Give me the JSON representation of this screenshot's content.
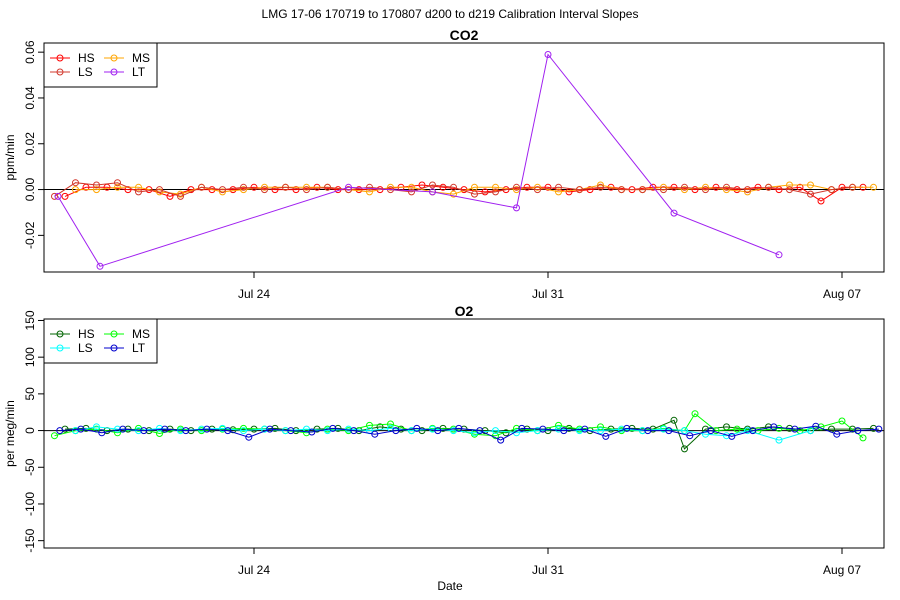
{
  "figure": {
    "suptitle": "LMG   17-06    170719 to 170807    d200 to d219   Calibration Interval Slopes",
    "xlabel": "Date"
  },
  "chart_data": [
    {
      "type": "scatter",
      "title": "CO2",
      "ylabel": "ppm/min",
      "x_range": [
        "2017-07-19",
        "2017-08-08"
      ],
      "ylim": [
        -0.036,
        0.064
      ],
      "y_ticks": [
        -0.02,
        0.0,
        0.02,
        0.04,
        0.06
      ],
      "y_tick_labels": [
        "-0.02",
        "0.00",
        "0.02",
        "0.04",
        "0.06"
      ],
      "x_ticks": [
        "2017-07-24",
        "2017-07-31",
        "2017-08-07"
      ],
      "x_tick_labels": [
        "Jul 24",
        "Jul 31",
        "Aug 07"
      ],
      "reference_line_y": 0,
      "legend": {
        "position": "top-left",
        "columns": 2
      },
      "series": [
        {
          "name": "HS",
          "color": "#ff0000",
          "x": [
            "2017-07-19 12:00",
            "2017-07-20 00:00",
            "2017-07-20 12:00",
            "2017-07-21 00:00",
            "2017-07-21 12:00",
            "2017-07-22 00:00",
            "2017-07-22 12:00",
            "2017-07-23 00:00",
            "2017-07-23 12:00",
            "2017-07-24 00:00",
            "2017-07-24 12:00",
            "2017-07-25 00:00",
            "2017-07-25 12:00",
            "2017-07-26 00:00",
            "2017-07-26 12:00",
            "2017-07-27 00:00",
            "2017-07-27 12:00",
            "2017-07-28 00:00",
            "2017-07-28 12:00",
            "2017-07-29 00:00",
            "2017-07-29 12:00",
            "2017-07-30 00:00",
            "2017-07-30 12:00",
            "2017-07-31 00:00",
            "2017-07-31 12:00",
            "2017-08-01 00:00",
            "2017-08-01 12:00",
            "2017-08-02 00:00",
            "2017-08-02 12:00",
            "2017-08-03 00:00",
            "2017-08-03 12:00",
            "2017-08-04 00:00",
            "2017-08-04 12:00",
            "2017-08-05 00:00",
            "2017-08-05 12:00",
            "2017-08-06 00:00",
            "2017-08-06 12:00",
            "2017-08-07 00:00",
            "2017-08-07 12:00"
          ],
          "y": [
            -0.003,
            0.001,
            0.001,
            0.0,
            0.0,
            -0.003,
            0.0,
            0.0,
            0.0,
            0.001,
            0.0,
            0.0,
            0.001,
            0.0,
            0.0,
            0.0,
            0.001,
            0.002,
            0.001,
            0.0,
            -0.001,
            0.0,
            0.001,
            0.001,
            -0.001,
            0.0,
            0.001,
            0.0,
            0.001,
            0.001,
            0.0,
            0.001,
            0.0,
            0.001,
            0.0,
            0.001,
            -0.005,
            0.001,
            0.001
          ]
        },
        {
          "name": "MS",
          "color": "#ffa500",
          "x": [
            "2017-07-19 18:00",
            "2017-07-20 06:00",
            "2017-07-20 18:00",
            "2017-07-21 06:00",
            "2017-07-21 18:00",
            "2017-07-22 06:00",
            "2017-07-22 18:00",
            "2017-07-23 06:00",
            "2017-07-23 18:00",
            "2017-07-24 06:00",
            "2017-07-24 18:00",
            "2017-07-25 06:00",
            "2017-07-25 18:00",
            "2017-07-26 06:00",
            "2017-07-26 18:00",
            "2017-07-27 06:00",
            "2017-07-27 18:00",
            "2017-07-28 06:00",
            "2017-07-28 18:00",
            "2017-07-29 06:00",
            "2017-07-29 18:00",
            "2017-07-30 06:00",
            "2017-07-30 18:00",
            "2017-07-31 06:00",
            "2017-07-31 18:00",
            "2017-08-01 06:00",
            "2017-08-01 18:00",
            "2017-08-02 06:00",
            "2017-08-02 18:00",
            "2017-08-03 06:00",
            "2017-08-03 18:00",
            "2017-08-04 06:00",
            "2017-08-04 18:00",
            "2017-08-05 06:00",
            "2017-08-05 18:00",
            "2017-08-06 06:00",
            "2017-08-06 18:00",
            "2017-08-07 06:00",
            "2017-08-07 18:00"
          ],
          "y": [
            0.0,
            0.0,
            0.001,
            0.001,
            -0.001,
            -0.002,
            0.001,
            -0.001,
            0.0,
            0.001,
            0.001,
            0.001,
            0.001,
            0.0,
            -0.001,
            0.001,
            0.001,
            -0.001,
            -0.002,
            0.001,
            0.001,
            0.0,
            0.001,
            -0.001,
            0.0,
            0.002,
            0.0,
            0.0,
            0.001,
            0.0,
            0.001,
            0.0,
            -0.001,
            0.001,
            0.002,
            0.002,
            0.0,
            0.001,
            0.001
          ]
        },
        {
          "name": "LS",
          "color": "#d2382c",
          "x": [
            "2017-07-19 06:00",
            "2017-07-19 18:00",
            "2017-07-20 06:00",
            "2017-07-20 18:00",
            "2017-07-21 06:00",
            "2017-07-21 18:00",
            "2017-07-22 06:00",
            "2017-07-22 18:00",
            "2017-07-23 06:00",
            "2017-07-23 18:00",
            "2017-07-24 06:00",
            "2017-07-24 18:00",
            "2017-07-25 06:00",
            "2017-07-25 18:00",
            "2017-07-26 06:00",
            "2017-07-26 18:00",
            "2017-07-27 06:00",
            "2017-07-27 18:00",
            "2017-07-28 06:00",
            "2017-07-28 18:00",
            "2017-07-29 06:00",
            "2017-07-29 18:00",
            "2017-07-30 06:00",
            "2017-07-30 18:00",
            "2017-07-31 06:00",
            "2017-07-31 18:00",
            "2017-08-01 06:00",
            "2017-08-01 18:00",
            "2017-08-02 06:00",
            "2017-08-02 18:00",
            "2017-08-03 06:00",
            "2017-08-03 18:00",
            "2017-08-04 06:00",
            "2017-08-04 18:00",
            "2017-08-05 06:00",
            "2017-08-05 18:00",
            "2017-08-06 06:00",
            "2017-08-06 18:00",
            "2017-08-07 06:00"
          ],
          "y": [
            -0.003,
            0.003,
            0.002,
            0.003,
            -0.001,
            0.0,
            -0.003,
            0.001,
            0.0,
            0.001,
            0.0,
            0.001,
            0.0,
            0.001,
            0.0,
            0.001,
            0.0,
            -0.001,
            0.002,
            0.001,
            -0.002,
            -0.001,
            0.001,
            0.0,
            0.001,
            0.0,
            0.001,
            0.0,
            0.0,
            0.0,
            0.001,
            0.0,
            0.001,
            0.0,
            0.001,
            0.0,
            -0.002,
            0.0,
            0.001
          ]
        },
        {
          "name": "LT",
          "color": "#a020f0",
          "connected": true,
          "x": [
            "2017-07-19 08:00",
            "2017-07-20 08:00",
            "2017-07-26 06:00",
            "2017-07-28 06:00",
            "2017-07-30 06:00",
            "2017-07-31 00:00",
            "2017-08-03 00:00",
            "2017-08-05 12:00"
          ],
          "y": [
            -0.003,
            -0.0335,
            0.001,
            -0.001,
            -0.008,
            0.059,
            -0.0103,
            -0.0285
          ]
        }
      ]
    },
    {
      "type": "scatter",
      "title": "O2",
      "ylabel": "per meg/min",
      "xlabel": "Date",
      "x_range": [
        "2017-07-19",
        "2017-08-08"
      ],
      "ylim": [
        -160,
        152
      ],
      "y_ticks": [
        -150,
        -100,
        -50,
        0,
        50,
        100,
        150
      ],
      "y_tick_labels": [
        "-150",
        "-100",
        "-50",
        "0",
        "50",
        "100",
        "150"
      ],
      "x_ticks": [
        "2017-07-24",
        "2017-07-31",
        "2017-08-07"
      ],
      "x_tick_labels": [
        "Jul 24",
        "Jul 31",
        "Aug 07"
      ],
      "reference_line_y": 0,
      "legend": {
        "position": "top-left",
        "columns": 2
      },
      "series": [
        {
          "name": "HS",
          "color": "#006400",
          "x": [
            "2017-07-19 12:00",
            "2017-07-20 00:00",
            "2017-07-20 12:00",
            "2017-07-21 00:00",
            "2017-07-21 12:00",
            "2017-07-22 00:00",
            "2017-07-22 12:00",
            "2017-07-23 00:00",
            "2017-07-23 12:00",
            "2017-07-24 00:00",
            "2017-07-24 12:00",
            "2017-07-25 00:00",
            "2017-07-25 12:00",
            "2017-07-26 00:00",
            "2017-07-26 12:00",
            "2017-07-27 00:00",
            "2017-07-27 12:00",
            "2017-07-28 00:00",
            "2017-07-28 12:00",
            "2017-07-29 00:00",
            "2017-07-29 12:00",
            "2017-07-30 00:00",
            "2017-07-30 12:00",
            "2017-07-31 00:00",
            "2017-07-31 12:00",
            "2017-08-01 00:00",
            "2017-08-01 12:00",
            "2017-08-02 00:00",
            "2017-08-02 12:00",
            "2017-08-03 00:00",
            "2017-08-03 06:00",
            "2017-08-03 18:00",
            "2017-08-04 06:00",
            "2017-08-04 18:00",
            "2017-08-05 06:00",
            "2017-08-05 18:00",
            "2017-08-06 06:00",
            "2017-08-06 18:00",
            "2017-08-07 06:00",
            "2017-08-07 18:00"
          ],
          "y": [
            2,
            3,
            0,
            2,
            0,
            2,
            0,
            2,
            1,
            2,
            3,
            0,
            2,
            3,
            0,
            5,
            2,
            0,
            3,
            2,
            0,
            -3,
            2,
            0,
            3,
            0,
            2,
            3,
            2,
            14,
            -25,
            2,
            5,
            2,
            5,
            3,
            0,
            2,
            2,
            3
          ]
        },
        {
          "name": "MS",
          "color": "#00ff00",
          "connected_segment": true,
          "x": [
            "2017-07-19 06:00",
            "2017-07-19 18:00",
            "2017-07-20 06:00",
            "2017-07-20 18:00",
            "2017-07-21 06:00",
            "2017-07-21 18:00",
            "2017-07-22 06:00",
            "2017-07-22 18:00",
            "2017-07-23 06:00",
            "2017-07-23 18:00",
            "2017-07-24 06:00",
            "2017-07-24 18:00",
            "2017-07-25 06:00",
            "2017-07-25 18:00",
            "2017-07-26 06:00",
            "2017-07-26 18:00",
            "2017-07-27 06:00",
            "2017-07-27 18:00",
            "2017-07-28 06:00",
            "2017-07-28 18:00",
            "2017-07-29 06:00",
            "2017-07-29 18:00",
            "2017-07-30 06:00",
            "2017-07-30 18:00",
            "2017-07-31 06:00",
            "2017-07-31 18:00",
            "2017-08-01 06:00",
            "2017-08-01 18:00",
            "2017-08-02 06:00",
            "2017-08-02 18:00",
            "2017-08-03 06:00",
            "2017-08-03 12:00",
            "2017-08-04 00:00",
            "2017-08-04 12:00",
            "2017-08-05 00:00",
            "2017-08-05 12:00",
            "2017-08-06 00:00",
            "2017-08-06 12:00",
            "2017-08-07 00:00",
            "2017-08-07 12:00"
          ],
          "y": [
            -7,
            0,
            2,
            -3,
            3,
            -4,
            2,
            0,
            2,
            3,
            2,
            0,
            -3,
            2,
            0,
            7,
            9,
            0,
            3,
            2,
            -5,
            -7,
            3,
            0,
            7,
            2,
            5,
            0,
            0,
            3,
            0,
            23,
            0,
            2,
            0,
            3,
            0,
            5,
            13,
            -10
          ]
        },
        {
          "name": "LS",
          "color": "#00ffff",
          "connected": true,
          "x": [
            "2017-07-19 18:00",
            "2017-07-20 06:00",
            "2017-07-20 18:00",
            "2017-07-21 06:00",
            "2017-07-21 18:00",
            "2017-07-22 06:00",
            "2017-07-22 18:00",
            "2017-07-23 06:00",
            "2017-07-23 18:00",
            "2017-07-24 06:00",
            "2017-07-24 18:00",
            "2017-07-25 06:00",
            "2017-07-25 18:00",
            "2017-07-26 06:00",
            "2017-07-26 18:00",
            "2017-07-27 06:00",
            "2017-07-27 18:00",
            "2017-07-28 06:00",
            "2017-07-28 18:00",
            "2017-07-29 06:00",
            "2017-07-29 18:00",
            "2017-07-30 06:00",
            "2017-07-30 18:00",
            "2017-07-31 06:00",
            "2017-07-31 18:00",
            "2017-08-01 06:00",
            "2017-08-01 18:00",
            "2017-08-02 06:00",
            "2017-08-02 18:00",
            "2017-08-03 06:00",
            "2017-08-03 18:00",
            "2017-08-04 06:00",
            "2017-08-04 18:00",
            "2017-08-05 12:00",
            "2017-08-06 06:00"
          ],
          "y": [
            0,
            5,
            2,
            0,
            3,
            0,
            2,
            3,
            0,
            2,
            0,
            2,
            0,
            2,
            0,
            3,
            0,
            2,
            0,
            -3,
            0,
            -3,
            0,
            2,
            0,
            0,
            2,
            0,
            2,
            0,
            -5,
            -7,
            0,
            -13,
            0
          ]
        },
        {
          "name": "LT",
          "color": "#0000cd",
          "x": [
            "2017-07-19 09:00",
            "2017-07-19 21:00",
            "2017-07-20 09:00",
            "2017-07-20 21:00",
            "2017-07-21 09:00",
            "2017-07-21 21:00",
            "2017-07-22 09:00",
            "2017-07-22 21:00",
            "2017-07-23 09:00",
            "2017-07-23 21:00",
            "2017-07-24 09:00",
            "2017-07-24 21:00",
            "2017-07-25 09:00",
            "2017-07-25 21:00",
            "2017-07-26 09:00",
            "2017-07-26 21:00",
            "2017-07-27 09:00",
            "2017-07-27 21:00",
            "2017-07-28 09:00",
            "2017-07-28 21:00",
            "2017-07-29 09:00",
            "2017-07-29 21:00",
            "2017-07-30 09:00",
            "2017-07-30 21:00",
            "2017-07-31 09:00",
            "2017-07-31 21:00",
            "2017-08-01 09:00",
            "2017-08-01 21:00",
            "2017-08-02 09:00",
            "2017-08-02 21:00",
            "2017-08-03 09:00",
            "2017-08-03 21:00",
            "2017-08-04 09:00",
            "2017-08-04 21:00",
            "2017-08-05 09:00",
            "2017-08-05 21:00",
            "2017-08-06 09:00",
            "2017-08-06 21:00",
            "2017-08-07 09:00",
            "2017-08-07 21:00"
          ],
          "y": [
            0,
            2,
            -3,
            2,
            0,
            2,
            0,
            2,
            0,
            -9,
            2,
            0,
            -2,
            3,
            0,
            -5,
            0,
            3,
            0,
            3,
            0,
            -13,
            3,
            2,
            0,
            2,
            -8,
            3,
            0,
            0,
            -7,
            0,
            -8,
            0,
            5,
            2,
            6,
            -5,
            0,
            2
          ]
        }
      ]
    }
  ]
}
